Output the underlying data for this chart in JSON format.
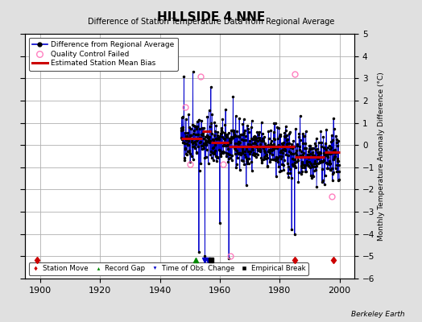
{
  "title": "HILLSIDE 4 NNE",
  "subtitle": "Difference of Station Temperature Data from Regional Average",
  "ylabel_right": "Monthly Temperature Anomaly Difference (°C)",
  "xlim": [
    1895,
    2005
  ],
  "ylim": [
    -6,
    5
  ],
  "yticks": [
    -6,
    -5,
    -4,
    -3,
    -2,
    -1,
    0,
    1,
    2,
    3,
    4,
    5
  ],
  "xticks": [
    1900,
    1920,
    1940,
    1960,
    1980,
    2000
  ],
  "bg_color": "#e0e0e0",
  "plot_bg_color": "#ffffff",
  "grid_color": "#b0b0b0",
  "data_start_year": 1947,
  "data_end_year": 2000,
  "seed": 42,
  "station_moves": [
    1899,
    1985,
    1998
  ],
  "record_gaps": [
    1952
  ],
  "obs_changes": [
    1955,
    1956
  ],
  "empirical_breaks": [
    1957
  ],
  "bias_segments": [
    {
      "x_start": 1947,
      "x_end": 1954,
      "bias": 0.3
    },
    {
      "x_start": 1954,
      "x_end": 1957,
      "bias": 0.62
    },
    {
      "x_start": 1957,
      "x_end": 1963,
      "bias": 0.12
    },
    {
      "x_start": 1963,
      "x_end": 1985,
      "bias": -0.08
    },
    {
      "x_start": 1985,
      "x_end": 1995,
      "bias": -0.55
    },
    {
      "x_start": 1995,
      "x_end": 2000,
      "bias": -0.32
    }
  ],
  "qc_failed_years": [
    1948.5,
    1950.0,
    1953.5,
    1961.2,
    1963.5,
    1985.0,
    1997.5
  ],
  "qc_failed_values": [
    1.7,
    -0.85,
    3.1,
    -0.85,
    -5.0,
    3.2,
    -2.3
  ],
  "footer_text": "Berkeley Earth",
  "line_color": "#0000cc",
  "dot_color": "#000000",
  "bias_color": "#cc0000",
  "qc_color": "#ff80c0",
  "station_move_color": "#cc0000",
  "record_gap_color": "#008800",
  "obs_change_color": "#0000cc",
  "empirical_break_color": "#000000"
}
